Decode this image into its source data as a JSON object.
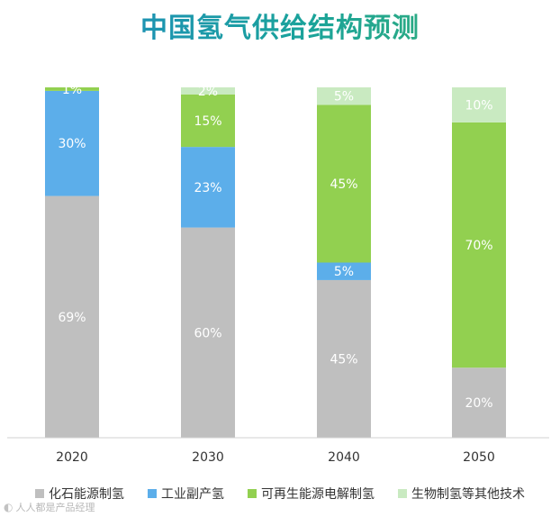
{
  "chart_data": {
    "type": "bar",
    "stacked": true,
    "title": "中国氢气供给结构预测",
    "categories": [
      "2020",
      "2030",
      "2040",
      "2050"
    ],
    "value_format": "percent",
    "ylim": [
      0,
      100
    ],
    "grid": false,
    "legend_position": "bottom",
    "series": [
      {
        "name": "化石能源制氢",
        "color": "#bfbfbf",
        "values": [
          69,
          60,
          45,
          20
        ],
        "labels": [
          "69%",
          "60%",
          "45%",
          "20%"
        ]
      },
      {
        "name": "工业副产氢",
        "color": "#5caeea",
        "values": [
          30,
          23,
          5,
          0
        ],
        "labels": [
          "30%",
          "23%",
          "5%",
          ""
        ]
      },
      {
        "name": "可再生能源电解制氢",
        "color": "#92d050",
        "values": [
          1,
          15,
          45,
          70
        ],
        "labels": [
          "1%",
          "15%",
          "45%",
          "70%"
        ]
      },
      {
        "name": "生物制氢等其他技术",
        "color": "#c9eac1",
        "values": [
          0,
          2,
          5,
          10
        ],
        "labels": [
          "",
          "2%",
          "5%",
          "10%"
        ]
      }
    ]
  },
  "watermark": {
    "text": "人人都是产品经理"
  }
}
